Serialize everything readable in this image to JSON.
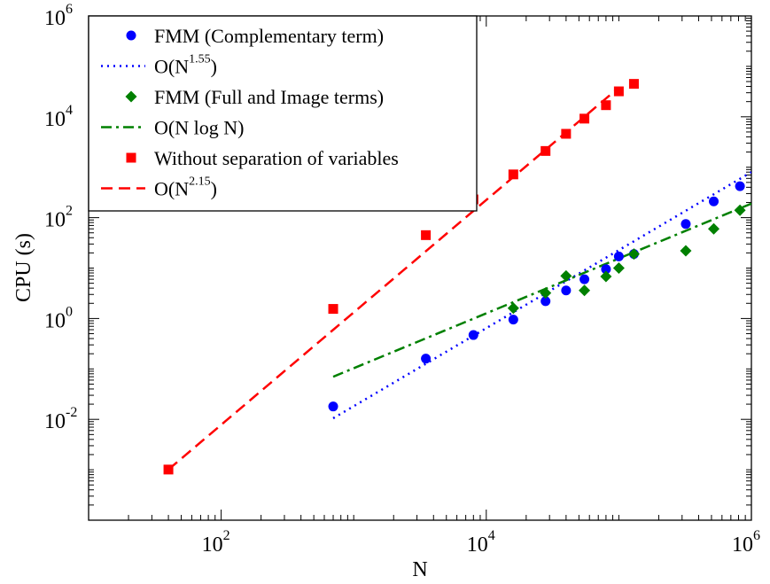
{
  "chart_data": {
    "type": "scatter",
    "x_scale": "log",
    "y_scale": "log",
    "xlabel": "N",
    "ylabel": "CPU (s)",
    "xlim": [
      10,
      1000000
    ],
    "ylim": [
      0.0001,
      1000000
    ],
    "x_ticks": [
      {
        "value": 100,
        "base": "10",
        "exp": "2"
      },
      {
        "value": 10000,
        "base": "10",
        "exp": "4"
      },
      {
        "value": 1000000,
        "base": "10",
        "exp": "6"
      }
    ],
    "y_ticks": [
      {
        "value": 0.01,
        "base": "10",
        "exp": "-2"
      },
      {
        "value": 1,
        "base": "10",
        "exp": "0"
      },
      {
        "value": 100,
        "base": "10",
        "exp": "2"
      },
      {
        "value": 10000,
        "base": "10",
        "exp": "4"
      },
      {
        "value": 1000000,
        "base": "10",
        "exp": "6"
      }
    ],
    "grid": false,
    "legend_position": "top-left",
    "series": [
      {
        "name": "FMM (Complementary term)",
        "kind": "points",
        "marker": "circle",
        "color": "#0000ff",
        "points": [
          [
            700,
            0.018
          ],
          [
            3500,
            0.16
          ],
          [
            8000,
            0.47
          ],
          [
            16000,
            0.95
          ],
          [
            28000,
            2.2
          ],
          [
            40000,
            3.6
          ],
          [
            55000,
            6.0
          ],
          [
            80000,
            9.5
          ],
          [
            100000,
            17
          ],
          [
            130000,
            19
          ],
          [
            320000,
            75
          ],
          [
            520000,
            210
          ],
          [
            820000,
            420
          ]
        ]
      },
      {
        "name_base": "O(N",
        "name_sup": "1.55",
        "name_close": ")",
        "kind": "line",
        "dash": "dotted",
        "color": "#0000ff",
        "points": [
          [
            700,
            0.0105
          ],
          [
            1000000,
            800
          ]
        ]
      },
      {
        "name": "FMM (Full and Image terms)",
        "kind": "points",
        "marker": "diamond",
        "color": "#008000",
        "points": [
          [
            16000,
            1.6
          ],
          [
            28000,
            3.2
          ],
          [
            40000,
            7.0
          ],
          [
            55000,
            3.6
          ],
          [
            80000,
            6.8
          ],
          [
            100000,
            10
          ],
          [
            130000,
            19
          ],
          [
            320000,
            22
          ],
          [
            520000,
            60
          ],
          [
            820000,
            140
          ]
        ]
      },
      {
        "name": "O(N log N)",
        "kind": "line",
        "dash": "dashdot",
        "color": "#008000",
        "points": [
          [
            700,
            0.07
          ],
          [
            1000000,
            190
          ]
        ]
      },
      {
        "name": "Without separation of variables",
        "kind": "points",
        "marker": "square",
        "color": "#ff0000",
        "points": [
          [
            40,
            0.00101
          ],
          [
            700,
            1.55
          ],
          [
            3500,
            45
          ],
          [
            8000,
            230
          ],
          [
            16000,
            720
          ],
          [
            28000,
            2100
          ],
          [
            40000,
            4600
          ],
          [
            55000,
            9200
          ],
          [
            80000,
            17000
          ],
          [
            100000,
            32000
          ],
          [
            130000,
            45000
          ]
        ]
      },
      {
        "name_base": "O(N",
        "name_sup": "2.15",
        "name_close": ")",
        "kind": "line",
        "dash": "dashed",
        "color": "#ff0000",
        "points": [
          [
            40,
            0.00101
          ],
          [
            100000,
            38000
          ]
        ]
      }
    ]
  }
}
